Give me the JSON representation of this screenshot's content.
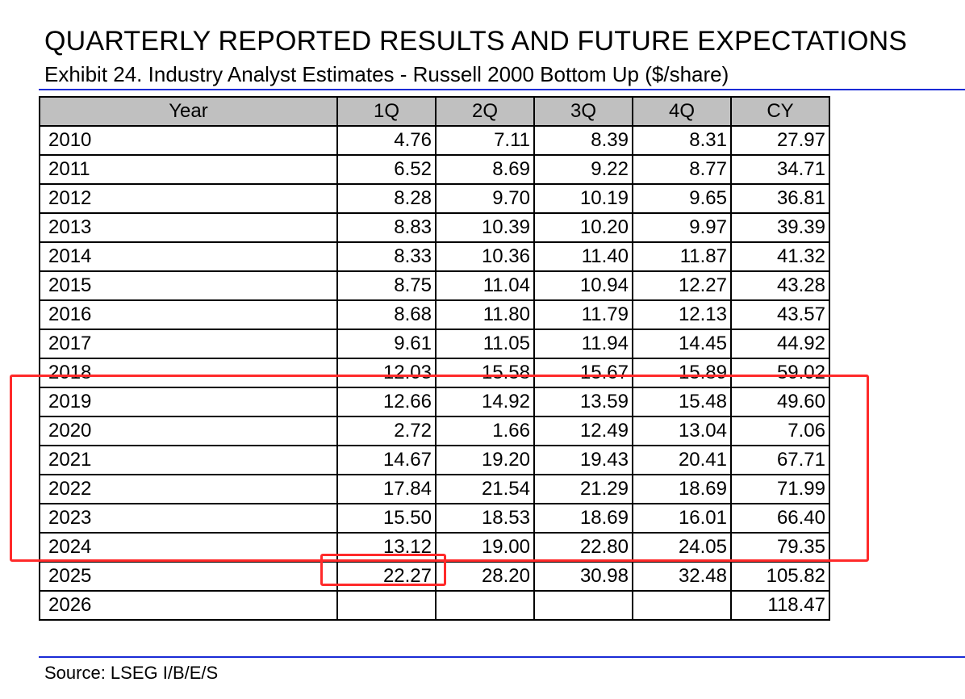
{
  "title": "QUARTERLY REPORTED RESULTS AND FUTURE EXPECTATIONS",
  "subtitle": "Exhibit 24. Industry Analyst Estimates - Russell 2000 Bottom Up ($/share)",
  "source": "Source: LSEG I/B/E/S",
  "colors": {
    "rule": "#1a2bd6",
    "header_bg": "#c0c0c0",
    "highlight": "#ff2a2a"
  },
  "table": {
    "headers": [
      "Year",
      "1Q",
      "2Q",
      "3Q",
      "4Q",
      "CY"
    ],
    "rows": [
      [
        "2010",
        "4.76",
        "7.11",
        "8.39",
        "8.31",
        "27.97"
      ],
      [
        "2011",
        "6.52",
        "8.69",
        "9.22",
        "8.77",
        "34.71"
      ],
      [
        "2012",
        "8.28",
        "9.70",
        "10.19",
        "9.65",
        "36.81"
      ],
      [
        "2013",
        "8.83",
        "10.39",
        "10.20",
        "9.97",
        "39.39"
      ],
      [
        "2014",
        "8.33",
        "10.36",
        "11.40",
        "11.87",
        "41.32"
      ],
      [
        "2015",
        "8.75",
        "11.04",
        "10.94",
        "12.27",
        "43.28"
      ],
      [
        "2016",
        "8.68",
        "11.80",
        "11.79",
        "12.13",
        "43.57"
      ],
      [
        "2017",
        "9.61",
        "11.05",
        "11.94",
        "14.45",
        "44.92"
      ],
      [
        "2018",
        "12.03",
        "15.58",
        "15.67",
        "15.89",
        "59.02"
      ],
      [
        "2019",
        "12.66",
        "14.92",
        "13.59",
        "15.48",
        "49.60"
      ],
      [
        "2020",
        "2.72",
        "1.66",
        "12.49",
        "13.04",
        "7.06"
      ],
      [
        "2021",
        "14.67",
        "19.20",
        "19.43",
        "20.41",
        "67.71"
      ],
      [
        "2022",
        "17.84",
        "21.54",
        "21.29",
        "18.69",
        "71.99"
      ],
      [
        "2023",
        "15.50",
        "18.53",
        "18.69",
        "16.01",
        "66.40"
      ],
      [
        "2024",
        "13.12",
        "19.00",
        "22.80",
        "24.05",
        "79.35"
      ],
      [
        "2025",
        "22.27",
        "28.20",
        "30.98",
        "32.48",
        "105.82"
      ],
      [
        "2026",
        "",
        "",
        "",
        "",
        "118.47"
      ]
    ]
  }
}
